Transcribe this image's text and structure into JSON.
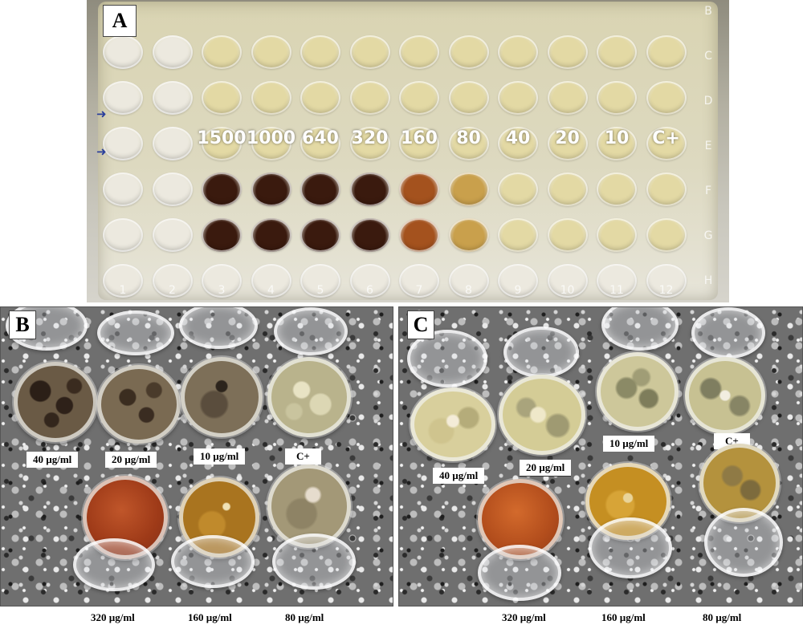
{
  "panel_a": {
    "letter": "A",
    "dilutions": [
      "1500",
      "1000",
      "640",
      "320",
      "160",
      "80",
      "40",
      "20",
      "10",
      "C+"
    ],
    "row_letters": [
      "B",
      "C",
      "D",
      "E",
      "F",
      "G",
      "H"
    ],
    "column_numbers": [
      "1",
      "2",
      "3",
      "4",
      "5",
      "6",
      "7",
      "8",
      "9",
      "10",
      "11",
      "12"
    ]
  },
  "panel_b": {
    "letter": "B",
    "top_labels": [
      "40 µg/ml",
      "20 µg/ml",
      "10 µg/ml",
      "C+"
    ],
    "bottom_labels": [
      "320 µg/ml",
      "160 µg/ml",
      "80 µg/ml"
    ]
  },
  "panel_c": {
    "letter": "C",
    "top_labels": [
      "40 µg/ml",
      "20 µg/ml",
      "10 µg/ml",
      "C+"
    ],
    "bottom_labels": [
      "320 µg/ml",
      "160 µg/ml",
      "80 µg/ml"
    ]
  },
  "colors": {
    "well_dark": "#3a1a0e",
    "well_orange": "#a4521e",
    "well_amber": "#c9a04c",
    "well_yellow": "#e3d9a4",
    "well_clear": "#ece9df"
  }
}
